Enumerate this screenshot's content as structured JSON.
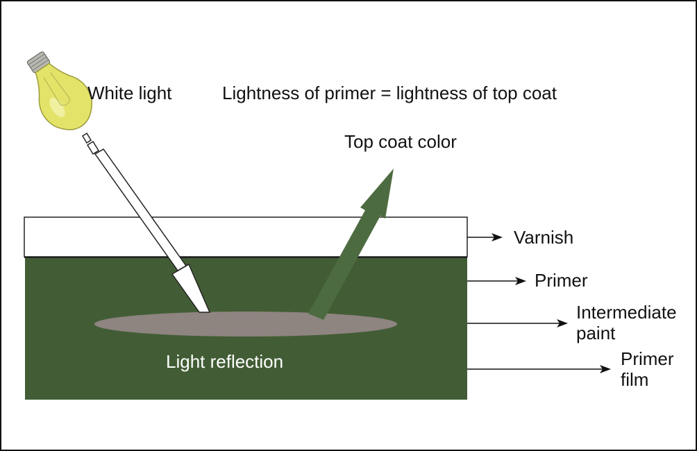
{
  "labels": {
    "white_light": "White light",
    "equation": "Lightness of primer = lightness of top coat",
    "top_coat_color": "Top coat color",
    "varnish": "Varnish",
    "primer": "Primer",
    "intermediate_line1": "Intermediate",
    "intermediate_line2": "paint",
    "primer_film_line1": "Primer",
    "primer_film_line2": "film",
    "light_reflection": "Light reflection"
  },
  "colors": {
    "coat_green": "#425d35",
    "varnish_white": "#ffffff",
    "reflection_grey": "#8e8480",
    "bulb_yellow": "#e3e36a",
    "arrow_green": "#4d6b40"
  }
}
